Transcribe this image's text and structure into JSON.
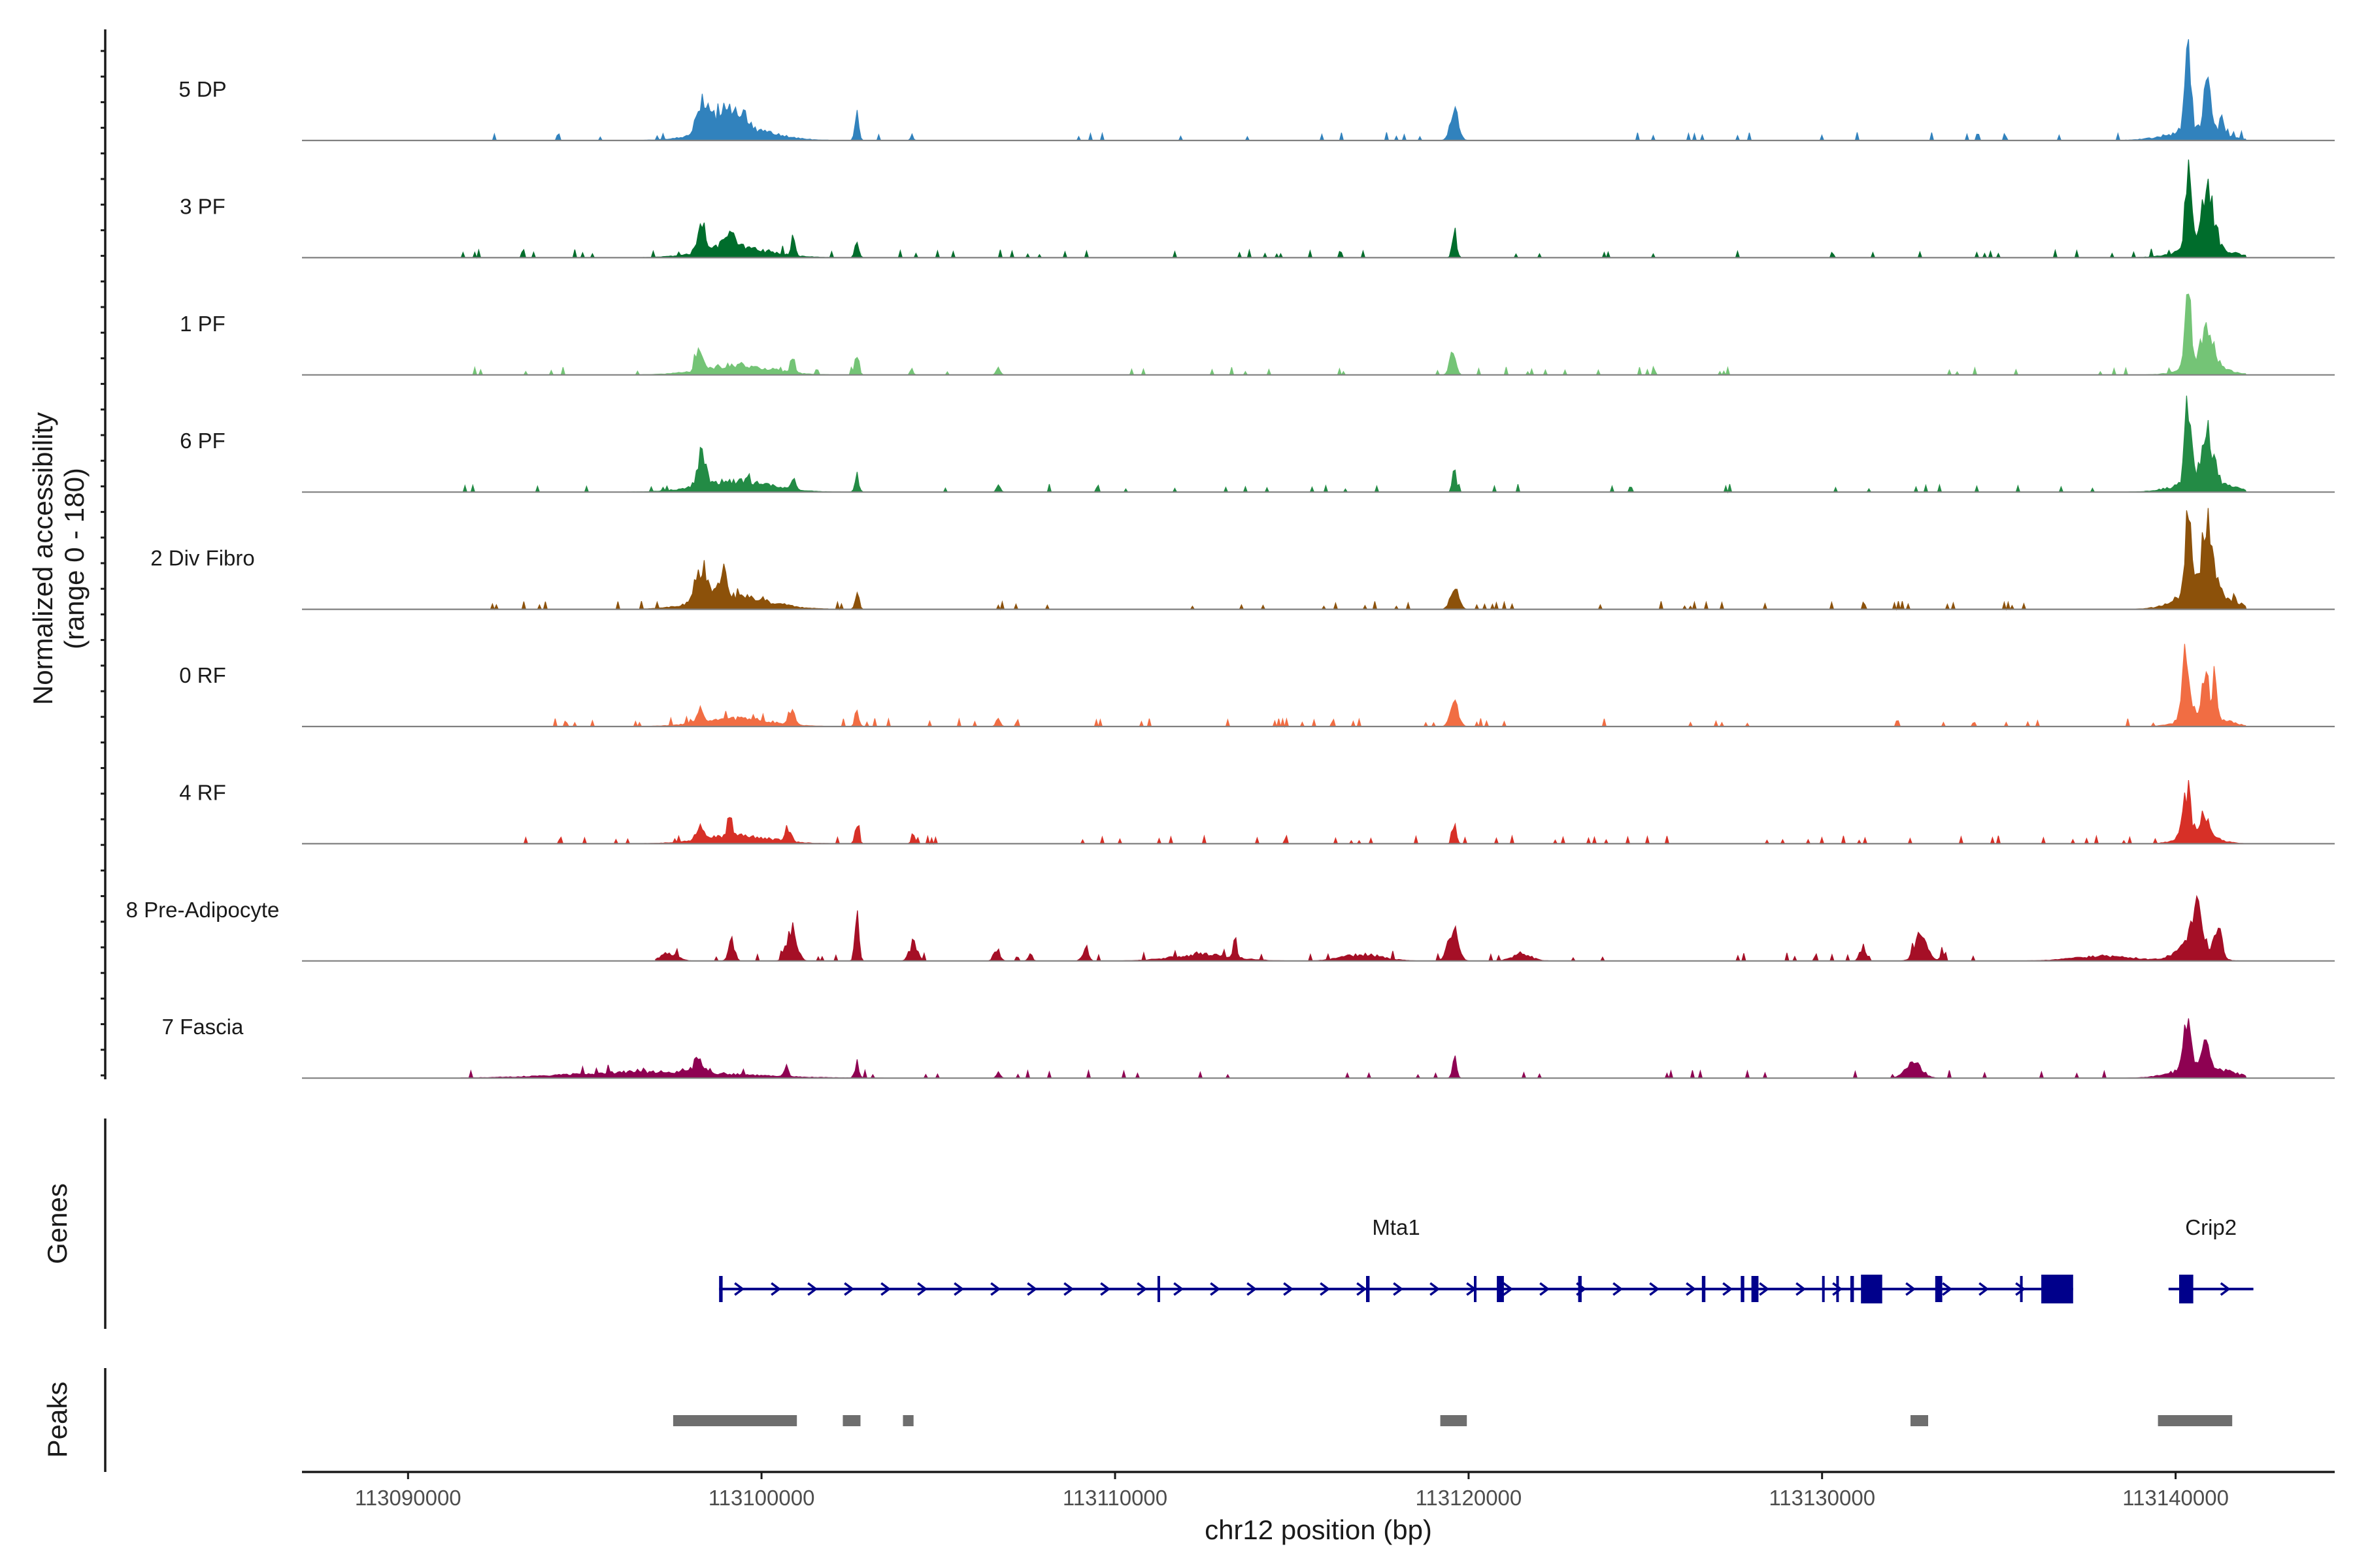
{
  "chart_data": {
    "type": "area",
    "title": "",
    "region": {
      "chrom": "chr12",
      "start": 113087000,
      "end": 113144500
    },
    "ylabel": [
      "Normalized accessibility",
      "(range 0 - 180)"
    ],
    "ylim": [
      0,
      180
    ],
    "xlabel": "chr12 position (bp)",
    "xticks": [
      113090000,
      113100000,
      113110000,
      113120000,
      113130000,
      113140000
    ],
    "xtick_labels": [
      "113090000",
      "113100000",
      "113110000",
      "113120000",
      "113130000",
      "113140000"
    ],
    "tracks": [
      {
        "name": "5 DP",
        "color": "#3182bd",
        "span": [
          113091500,
          113142000
        ],
        "peaks": [
          [
            113097600,
            113101000,
            0.15
          ],
          [
            113098100,
            113098600,
            0.4
          ],
          [
            113098500,
            113099300,
            0.28
          ],
          [
            113099000,
            113099800,
            0.2
          ],
          [
            113102600,
            113102800,
            0.32
          ],
          [
            113104200,
            113104300,
            0.08
          ],
          [
            113119400,
            113119800,
            0.4
          ],
          [
            113139200,
            113141900,
            0.12
          ],
          [
            113140200,
            113140500,
            1.0
          ],
          [
            113140700,
            113141100,
            0.56
          ],
          [
            113141200,
            113141400,
            0.25
          ]
        ]
      },
      {
        "name": "3 PF",
        "color": "#006d2c",
        "span": [
          113091500,
          113142000
        ],
        "peaks": [
          [
            113097600,
            113101000,
            0.12
          ],
          [
            113098100,
            113098500,
            0.4
          ],
          [
            113098700,
            113099500,
            0.15
          ],
          [
            113100800,
            113101000,
            0.22
          ],
          [
            113102600,
            113102800,
            0.18
          ],
          [
            113119500,
            113119700,
            0.4
          ],
          [
            113139600,
            113142000,
            0.14
          ],
          [
            113140200,
            113140500,
            0.95
          ],
          [
            113140600,
            113141200,
            0.7
          ]
        ]
      },
      {
        "name": "1 PF",
        "color": "#74c476",
        "span": [
          113091500,
          113142000
        ],
        "peaks": [
          [
            113097600,
            113101000,
            0.12
          ],
          [
            113098100,
            113098400,
            0.35
          ],
          [
            113100800,
            113101000,
            0.17
          ],
          [
            113102600,
            113102800,
            0.27
          ],
          [
            113104200,
            113104300,
            0.1
          ],
          [
            113106600,
            113106800,
            0.1
          ],
          [
            113119400,
            113119700,
            0.28
          ],
          [
            113139800,
            113141800,
            0.12
          ],
          [
            113140200,
            113140500,
            0.95
          ],
          [
            113140600,
            113141200,
            0.55
          ]
        ]
      },
      {
        "name": "6 PF",
        "color": "#238b45",
        "span": [
          113091500,
          113142000
        ],
        "peaks": [
          [
            113097500,
            113101000,
            0.14
          ],
          [
            113098100,
            113098500,
            0.38
          ],
          [
            113099500,
            113099700,
            0.12
          ],
          [
            113100800,
            113101000,
            0.15
          ],
          [
            113102600,
            113102800,
            0.2
          ],
          [
            113106600,
            113106800,
            0.08
          ],
          [
            113119500,
            113119700,
            0.28
          ],
          [
            113139500,
            113142000,
            0.14
          ],
          [
            113140200,
            113140500,
            1.0
          ],
          [
            113140600,
            113141200,
            0.6
          ]
        ]
      },
      {
        "name": "2 Div Fibro",
        "color": "#8c510a",
        "span": [
          113091500,
          113142000
        ],
        "peaks": [
          [
            113097500,
            113101000,
            0.16
          ],
          [
            113098000,
            113098600,
            0.45
          ],
          [
            113098700,
            113099100,
            0.35
          ],
          [
            113102600,
            113102800,
            0.2
          ],
          [
            113119400,
            113119800,
            0.3
          ],
          [
            113139600,
            113142000,
            0.22
          ],
          [
            113140200,
            113140500,
            1.0
          ],
          [
            113140600,
            113141200,
            0.85
          ]
        ]
      },
      {
        "name": "0 RF",
        "color": "#f16d43",
        "span": [
          113091500,
          113142000
        ],
        "peaks": [
          [
            113097600,
            113101000,
            0.1
          ],
          [
            113098100,
            113098400,
            0.18
          ],
          [
            113100700,
            113101000,
            0.2
          ],
          [
            113102600,
            113102800,
            0.2
          ],
          [
            113106600,
            113106800,
            0.12
          ],
          [
            113119400,
            113119800,
            0.32
          ],
          [
            113139800,
            113141800,
            0.14
          ],
          [
            113140100,
            113140500,
            0.8
          ],
          [
            113140700,
            113141000,
            0.55
          ],
          [
            113141000,
            113141200,
            0.5
          ]
        ]
      },
      {
        "name": "4 RF",
        "color": "#d73027",
        "span": [
          113091500,
          113142000
        ],
        "peaks": [
          [
            113097600,
            113101000,
            0.1
          ],
          [
            113098100,
            113098400,
            0.22
          ],
          [
            113099000,
            113099200,
            0.2
          ],
          [
            113100600,
            113100900,
            0.17
          ],
          [
            113102600,
            113102800,
            0.22
          ],
          [
            113104200,
            113104400,
            0.1
          ],
          [
            113119500,
            113119700,
            0.28
          ],
          [
            113139800,
            113141500,
            0.12
          ],
          [
            113140100,
            113140500,
            0.6
          ],
          [
            113140600,
            113141000,
            0.32
          ]
        ]
      },
      {
        "name": "8 Pre-Adipocyte",
        "color": "#a50f26",
        "span": [
          113097000,
          113142000
        ],
        "peaks": [
          [
            113097000,
            113097800,
            0.1
          ],
          [
            113099000,
            113099300,
            0.25
          ],
          [
            113100600,
            113101100,
            0.4
          ],
          [
            113102600,
            113102800,
            0.62
          ],
          [
            113104100,
            113104500,
            0.22
          ],
          [
            113106500,
            113106800,
            0.15
          ],
          [
            113107500,
            113107700,
            0.1
          ],
          [
            113109000,
            113109300,
            0.14
          ],
          [
            113111000,
            113114000,
            0.08
          ],
          [
            113113300,
            113113500,
            0.2
          ],
          [
            113116000,
            113118000,
            0.08
          ],
          [
            113119300,
            113119800,
            0.42
          ],
          [
            113121000,
            113122000,
            0.08
          ],
          [
            113131000,
            113131300,
            0.18
          ],
          [
            113132500,
            113133100,
            0.35
          ],
          [
            113133300,
            113133500,
            0.1
          ],
          [
            113136500,
            113139500,
            0.06
          ],
          [
            113139800,
            113141200,
            0.3
          ],
          [
            113140400,
            113140800,
            0.5
          ],
          [
            113141000,
            113141400,
            0.35
          ]
        ]
      },
      {
        "name": "7 Fascia",
        "color": "#8e0152",
        "span": [
          113091500,
          113142000
        ],
        "peaks": [
          [
            113093000,
            113101000,
            0.08
          ],
          [
            113098000,
            113098400,
            0.18
          ],
          [
            113100600,
            113100800,
            0.12
          ],
          [
            113102600,
            113102800,
            0.2
          ],
          [
            113106600,
            113106800,
            0.08
          ],
          [
            113119500,
            113119700,
            0.3
          ],
          [
            113132200,
            113133000,
            0.18
          ],
          [
            113139500,
            113142000,
            0.15
          ],
          [
            113140100,
            113140500,
            0.55
          ],
          [
            113140700,
            113141000,
            0.32
          ]
        ]
      }
    ],
    "genes": {
      "title": "Genes",
      "items": [
        {
          "name": "Mta1",
          "strand": "+",
          "start": 113098800,
          "end": 113137100,
          "exons": [
            [
              113098800,
              113098900
            ],
            [
              113111200,
              113111250
            ],
            [
              113117100,
              113117200
            ],
            [
              113120150,
              113120200
            ],
            [
              113120800,
              113121000
            ],
            [
              113123100,
              113123200
            ],
            [
              113126600,
              113126700
            ],
            [
              113127700,
              113127800
            ],
            [
              113128000,
              113128200
            ],
            [
              113130000,
              113130050
            ],
            [
              113130400,
              113130450
            ],
            [
              113130800,
              113130900
            ],
            [
              113131100,
              113131700
            ],
            [
              113133200,
              113133400
            ],
            [
              113135600,
              113135650
            ],
            [
              113136200,
              113137100
            ]
          ]
        },
        {
          "name": "Crip2",
          "strand": "+",
          "start": 113139800,
          "end": 113142200,
          "exons": [
            [
              113140100,
              113140500
            ]
          ]
        }
      ]
    },
    "peaks_track": {
      "title": "Peaks",
      "intervals": [
        [
          113097500,
          113101000
        ],
        [
          113102300,
          113102800
        ],
        [
          113104000,
          113104300
        ],
        [
          113119200,
          113119950
        ],
        [
          113132500,
          113133000
        ],
        [
          113139500,
          113141600
        ]
      ]
    }
  }
}
